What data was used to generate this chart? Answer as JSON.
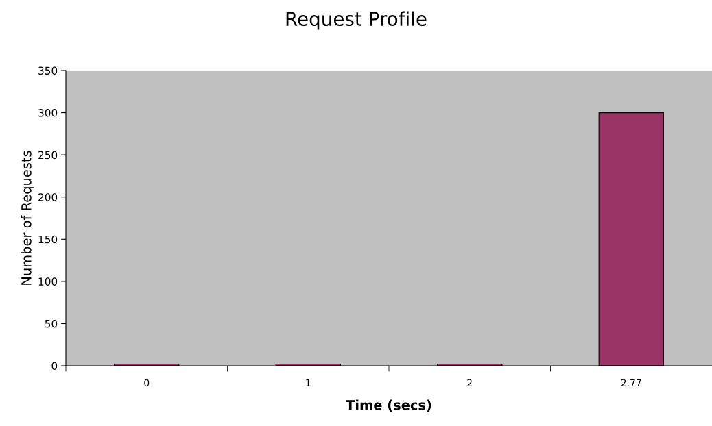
{
  "chart_data": {
    "type": "bar",
    "title": "Request Profile",
    "xlabel": "Time (secs)",
    "ylabel": "Number of Requests",
    "categories": [
      "0",
      "1",
      "2",
      "2.77"
    ],
    "values": [
      2,
      2,
      2,
      300
    ],
    "color": "#993366",
    "ylim": [
      0,
      350
    ],
    "yticks": [
      0,
      50,
      100,
      150,
      200,
      250,
      300,
      350
    ],
    "grid": false,
    "legend": false
  }
}
